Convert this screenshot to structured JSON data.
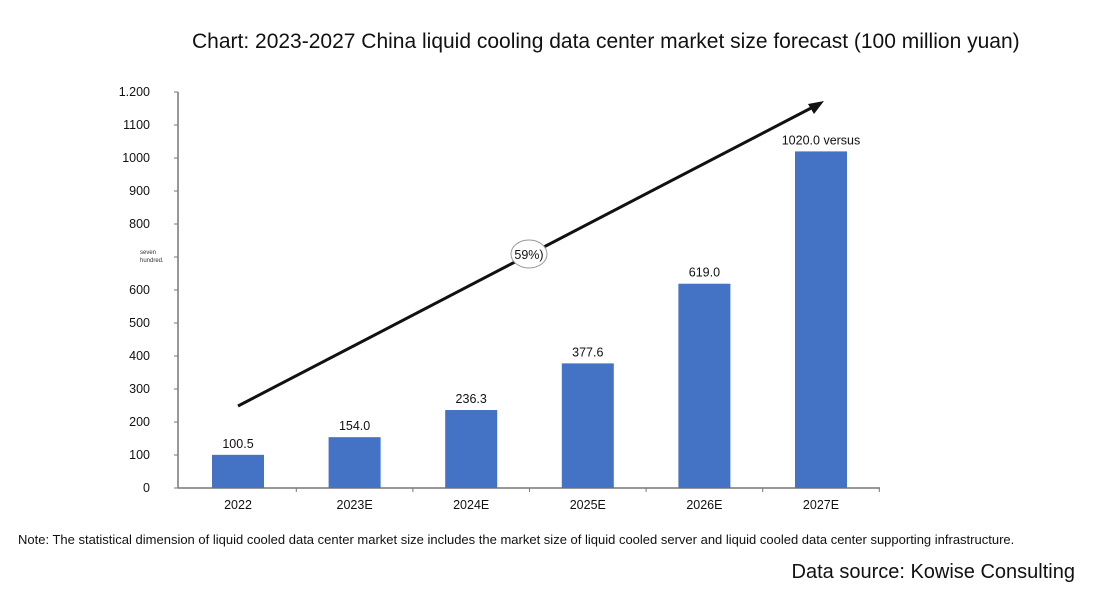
{
  "chart_data": {
    "type": "bar",
    "title": "Chart: 2023-2027 China liquid cooling data center market size forecast (100 million yuan)",
    "categories": [
      "2022",
      "2023E",
      "2024E",
      "2025E",
      "2026E",
      "2027E"
    ],
    "values": [
      100.5,
      154.0,
      236.3,
      377.6,
      619.0,
      1020.0
    ],
    "data_labels": [
      "100.5",
      "154.0",
      "236.3",
      "377.6",
      "619.0",
      "1020.0 versus"
    ],
    "ylim": [
      0,
      1200
    ],
    "yticks": [
      0,
      100,
      200,
      300,
      400,
      500,
      600,
      700,
      800,
      900,
      1000,
      1100,
      1200
    ],
    "ytick_labels": [
      "0",
      "100",
      "200",
      "300",
      "400",
      "500",
      "600",
      "seven hundred.",
      "800",
      "900",
      "1000",
      "1100",
      "1.200"
    ],
    "grid": false,
    "bar_color": "#4472C4",
    "trend_arrow_label": "59%)",
    "note": "Note: The statistical dimension of liquid cooled data center market size includes the market size of liquid cooled server and liquid cooled data center supporting infrastructure.",
    "source": "Data source: Kowise Consulting"
  }
}
